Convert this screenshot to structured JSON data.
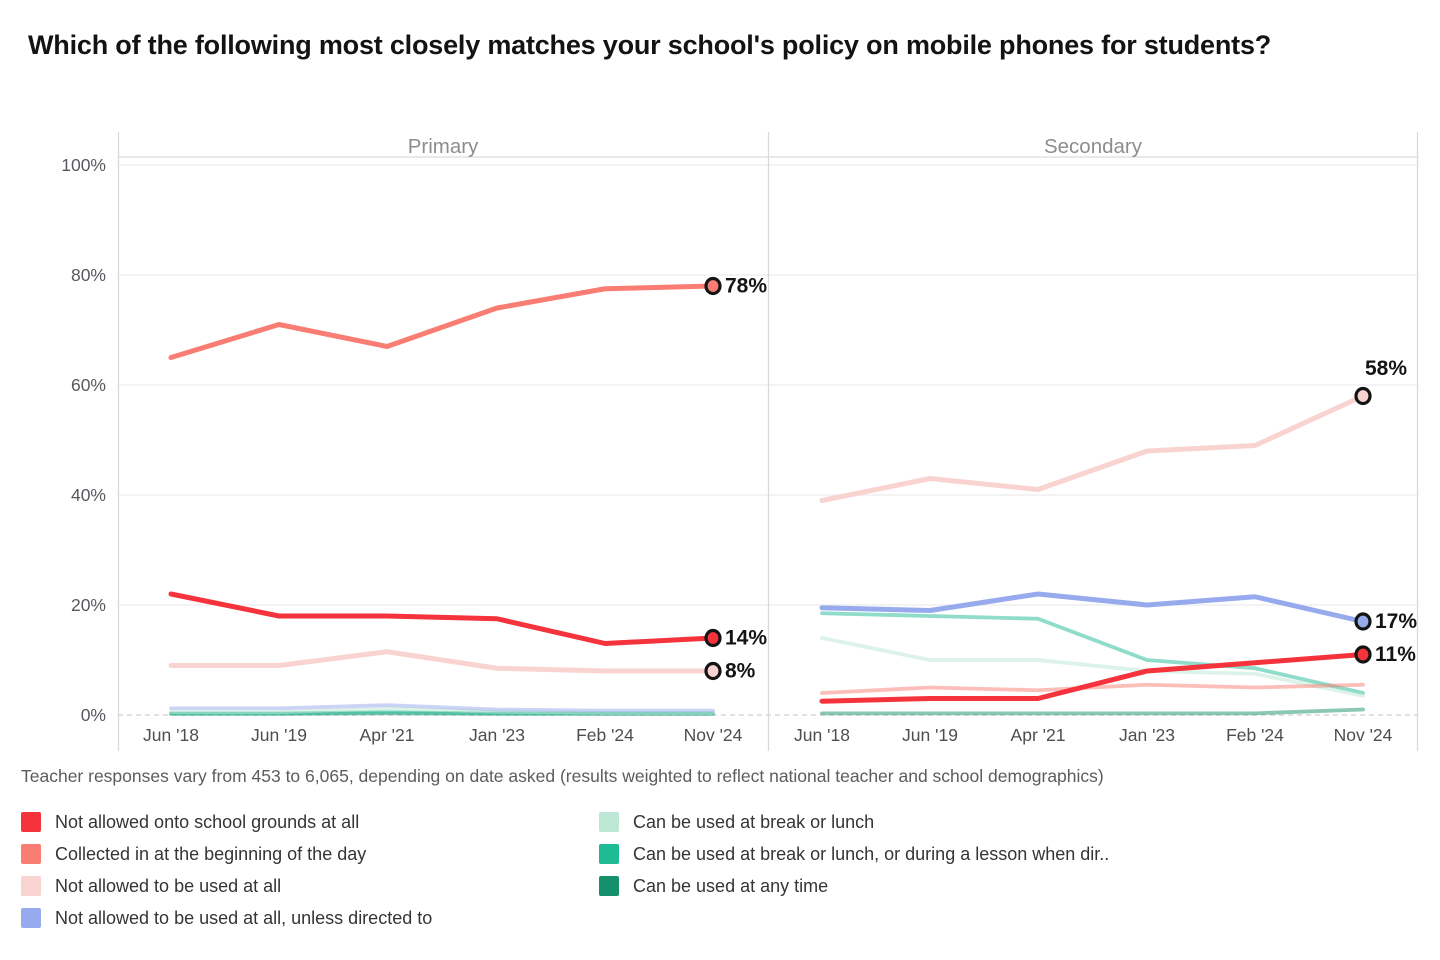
{
  "title": "Which of the following most closely matches your school's policy on mobile phones for students?",
  "footnote": "Teacher responses vary from 453 to 6,065, depending on date asked (results weighted to reflect national teacher and school demographics)",
  "legend": {
    "items": [
      {
        "key": "grounds",
        "label": "Not allowed onto school grounds at all"
      },
      {
        "key": "collected",
        "label": "Collected in at the beginning of the day"
      },
      {
        "key": "notused",
        "label": "Not allowed to be used at all"
      },
      {
        "key": "unless",
        "label": "Not allowed to be used at all, unless directed to"
      },
      {
        "key": "break",
        "label": "Can be used at break or lunch"
      },
      {
        "key": "lesson",
        "label": "Can be used at break or lunch, or during a lesson when dir.."
      },
      {
        "key": "anytime",
        "label": "Can be used at any time"
      }
    ]
  },
  "chart_data": {
    "type": "line",
    "x_labels": [
      "Jun '18",
      "Jun '19",
      "Apr '21",
      "Jan '23",
      "Feb '24",
      "Nov '24"
    ],
    "y_ticks": [
      "0%",
      "20%",
      "40%",
      "60%",
      "80%",
      "100%"
    ],
    "ylim": [
      0,
      100
    ],
    "grid": true,
    "colors": {
      "grounds": "#f5333c",
      "collected": "#f97d73",
      "notused": "#f9d3d0",
      "unless": "#97aaee",
      "break": "#bce7d4",
      "lesson": "#1eba93",
      "anytime": "#15906c"
    },
    "panels": [
      {
        "title": "Primary",
        "series": {
          "grounds": {
            "values": [
              22,
              18,
              18,
              17.5,
              13,
              14
            ],
            "end_label": "14%",
            "label_pos": "right"
          },
          "collected": {
            "values": [
              65,
              71,
              67,
              74,
              77.5,
              78
            ],
            "end_label": "78%",
            "label_pos": "right"
          },
          "notused": {
            "values": [
              9,
              9,
              11.5,
              8.5,
              8,
              8
            ],
            "end_label": "8%",
            "label_pos": "right"
          },
          "unless": {
            "values": [
              1.2,
              1.2,
              1.8,
              1,
              0.8,
              0.8
            ],
            "end_label": null
          },
          "break": {
            "values": [
              0.5,
              0.5,
              1.2,
              0.6,
              0.4,
              0.4
            ],
            "end_label": null
          },
          "lesson": {
            "values": [
              0.3,
              0.3,
              0.5,
              0.3,
              0.3,
              0.3
            ],
            "end_label": null
          },
          "anytime": {
            "values": [
              0.2,
              0.2,
              0.3,
              0.2,
              0.2,
              0.2
            ],
            "end_label": null
          }
        }
      },
      {
        "title": "Secondary",
        "series": {
          "grounds": {
            "values": [
              2.5,
              3,
              3,
              8,
              9.5,
              11
            ],
            "end_label": "11%",
            "label_pos": "right"
          },
          "collected": {
            "values": [
              4,
              5,
              4.5,
              5.5,
              5,
              5.5
            ],
            "end_label": null
          },
          "notused": {
            "values": [
              39,
              43,
              41,
              48,
              49,
              58
            ],
            "end_label": "58%",
            "label_pos": "above"
          },
          "unless": {
            "values": [
              19.5,
              19,
              22,
              20,
              21.5,
              17
            ],
            "end_label": "17%",
            "label_pos": "right"
          },
          "break": {
            "values": [
              14,
              10,
              10,
              8,
              7.5,
              3.5
            ],
            "end_label": null
          },
          "lesson": {
            "values": [
              18.5,
              18,
              17.5,
              10,
              8.5,
              4
            ],
            "end_label": null
          },
          "anytime": {
            "values": [
              0.3,
              0.3,
              0.3,
              0.3,
              0.3,
              1
            ],
            "end_label": null
          }
        }
      }
    ]
  }
}
